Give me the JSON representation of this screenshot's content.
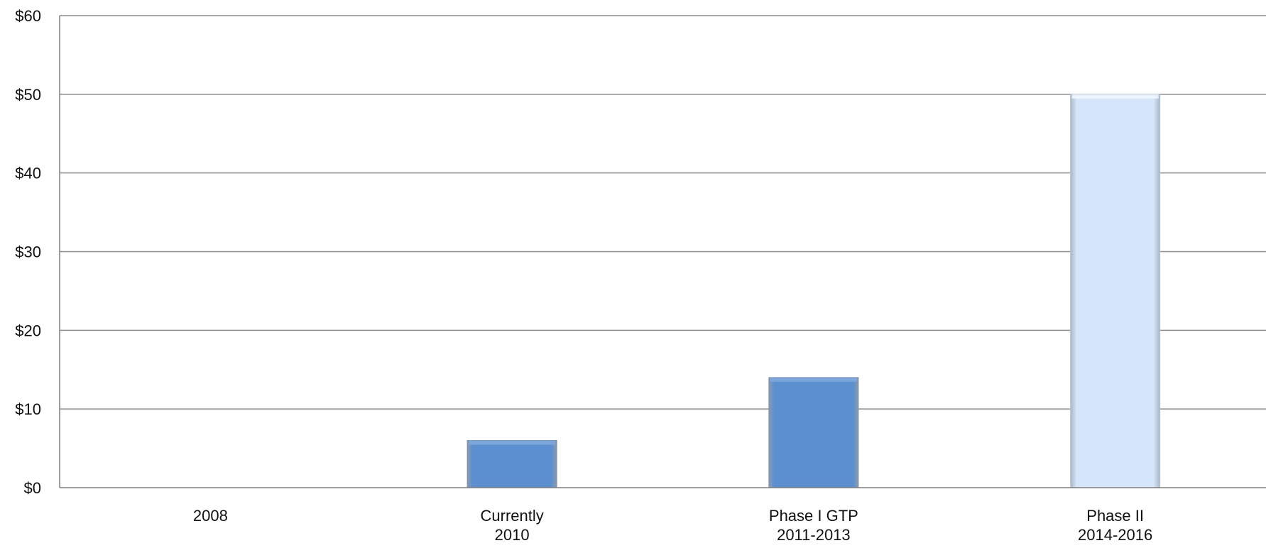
{
  "chart_data": {
    "type": "bar",
    "title": "",
    "xlabel": "",
    "ylabel": "",
    "categories": [
      [
        "2008"
      ],
      [
        "Currently",
        "2010"
      ],
      [
        "Phase I GTP",
        "2011-2013"
      ],
      [
        "Phase II",
        "2014-2016"
      ]
    ],
    "values": [
      0,
      6,
      14,
      50
    ],
    "bar_colors": [
      "#5b8fcf",
      "#5b8fcf",
      "#5b8fcf",
      "#d6e6fa"
    ],
    "ylim": [
      0,
      60
    ],
    "yticks": [
      0,
      10,
      20,
      30,
      40,
      50,
      60
    ],
    "ytick_labels": [
      "$0",
      "$10",
      "$20",
      "$30",
      "$40",
      "$50",
      "$60"
    ],
    "grid": true,
    "legend": "none"
  },
  "colors": {
    "gridline": "#8c8c8c",
    "axis": "#7f7f7f",
    "bar_dark": "#5b8fcf",
    "bar_light": "#d6e6fa"
  }
}
